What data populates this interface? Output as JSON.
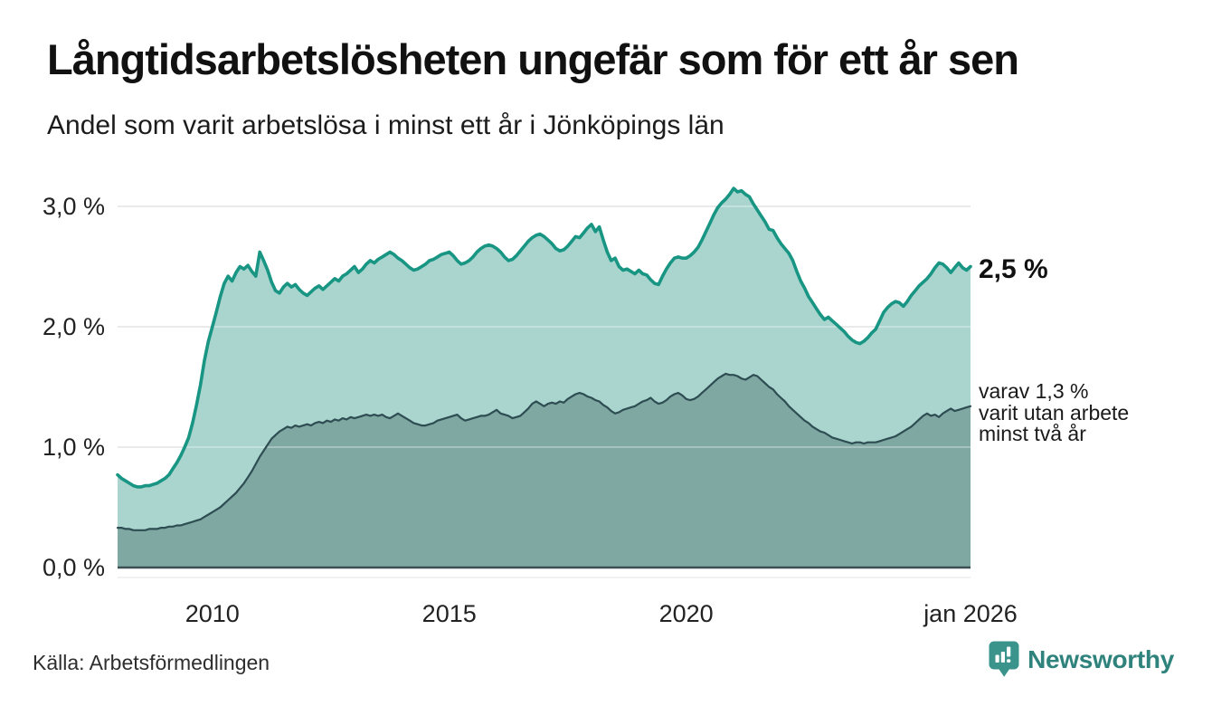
{
  "header": {
    "title": "Långtidsarbetslösheten ungefär som för ett år sen",
    "subtitle": "Andel som varit arbetslösa i minst ett år i Jönköpings län"
  },
  "annotations": {
    "latest_total": "2,5 %",
    "secondary_line1": "varav 1,3 %",
    "secondary_line2": "varit utan arbete",
    "secondary_line3": "minst två år"
  },
  "footer": {
    "source": "Källa: Arbetsförmedlingen",
    "brand": "Newsworthy"
  },
  "colors": {
    "line_total": "#189583",
    "area_total": "#A9D5CE",
    "line_two_year": "#2E4D53",
    "area_two_year": "#7FA8A2",
    "grid": "#D4D4D4",
    "axis_baseline": "#3C4F53",
    "sub_axis": "#E3E3E3",
    "tick_text": "#222222",
    "brand_icon": "#3A948C",
    "brand_text": "#2F837C"
  },
  "chart_data": {
    "type": "area",
    "title": "Långtidsarbetslösheten ungefär som för ett år sen",
    "subtitle": "Andel som varit arbetslösa i minst ett år i Jönköpings län",
    "x_start_year": 2008,
    "points_per_year": 12,
    "x_end_year": 2026,
    "ylim": [
      0,
      3.3
    ],
    "grid": true,
    "y_ticks": [
      {
        "value": 0,
        "label": "0,0 %"
      },
      {
        "value": 1,
        "label": "1,0 %"
      },
      {
        "value": 2,
        "label": "2,0 %"
      },
      {
        "value": 3,
        "label": "3,0 %"
      }
    ],
    "x_ticks": [
      {
        "year": 2010,
        "label": "2010"
      },
      {
        "year": 2015,
        "label": "2015"
      },
      {
        "year": 2020,
        "label": "2020"
      },
      {
        "year": 2026,
        "label": "jan 2026"
      }
    ],
    "latest_values": {
      "total": 2.5,
      "two_year": 1.3
    },
    "series": [
      {
        "name": "Andel arbetslösa minst ett år",
        "values": [
          0.77,
          0.74,
          0.72,
          0.7,
          0.68,
          0.67,
          0.67,
          0.68,
          0.68,
          0.69,
          0.7,
          0.72,
          0.74,
          0.77,
          0.82,
          0.87,
          0.93,
          1.0,
          1.08,
          1.2,
          1.35,
          1.52,
          1.72,
          1.88,
          2.0,
          2.12,
          2.25,
          2.36,
          2.42,
          2.38,
          2.45,
          2.5,
          2.48,
          2.51,
          2.46,
          2.42,
          2.62,
          2.55,
          2.47,
          2.37,
          2.3,
          2.28,
          2.33,
          2.36,
          2.33,
          2.35,
          2.31,
          2.28,
          2.26,
          2.29,
          2.32,
          2.34,
          2.31,
          2.34,
          2.37,
          2.4,
          2.38,
          2.42,
          2.44,
          2.47,
          2.5,
          2.45,
          2.48,
          2.52,
          2.55,
          2.53,
          2.56,
          2.58,
          2.6,
          2.62,
          2.6,
          2.57,
          2.55,
          2.52,
          2.49,
          2.47,
          2.48,
          2.5,
          2.52,
          2.55,
          2.56,
          2.58,
          2.6,
          2.61,
          2.62,
          2.59,
          2.55,
          2.52,
          2.53,
          2.55,
          2.58,
          2.62,
          2.65,
          2.67,
          2.68,
          2.67,
          2.65,
          2.62,
          2.58,
          2.55,
          2.56,
          2.59,
          2.63,
          2.67,
          2.71,
          2.74,
          2.76,
          2.77,
          2.75,
          2.72,
          2.69,
          2.65,
          2.63,
          2.64,
          2.67,
          2.71,
          2.75,
          2.74,
          2.78,
          2.82,
          2.85,
          2.79,
          2.83,
          2.72,
          2.62,
          2.55,
          2.57,
          2.5,
          2.47,
          2.48,
          2.46,
          2.44,
          2.47,
          2.44,
          2.43,
          2.39,
          2.36,
          2.35,
          2.42,
          2.48,
          2.53,
          2.57,
          2.58,
          2.57,
          2.57,
          2.59,
          2.62,
          2.66,
          2.72,
          2.79,
          2.86,
          2.93,
          2.99,
          3.03,
          3.06,
          3.1,
          3.15,
          3.12,
          3.13,
          3.1,
          3.08,
          3.02,
          2.97,
          2.92,
          2.87,
          2.81,
          2.8,
          2.74,
          2.69,
          2.65,
          2.61,
          2.55,
          2.46,
          2.38,
          2.32,
          2.25,
          2.2,
          2.15,
          2.1,
          2.06,
          2.08,
          2.05,
          2.02,
          1.99,
          1.96,
          1.92,
          1.89,
          1.87,
          1.86,
          1.88,
          1.91,
          1.95,
          1.98,
          2.05,
          2.12,
          2.16,
          2.19,
          2.21,
          2.2,
          2.17,
          2.21,
          2.26,
          2.3,
          2.34,
          2.37,
          2.4,
          2.44,
          2.49,
          2.53,
          2.52,
          2.49,
          2.45,
          2.49,
          2.53,
          2.49,
          2.47,
          2.5
        ]
      },
      {
        "name": "Varav utan arbete minst två år",
        "values": [
          0.33,
          0.33,
          0.32,
          0.32,
          0.31,
          0.31,
          0.31,
          0.31,
          0.32,
          0.32,
          0.32,
          0.33,
          0.33,
          0.34,
          0.34,
          0.35,
          0.35,
          0.36,
          0.37,
          0.38,
          0.39,
          0.4,
          0.42,
          0.44,
          0.46,
          0.48,
          0.5,
          0.53,
          0.56,
          0.59,
          0.62,
          0.66,
          0.7,
          0.75,
          0.8,
          0.86,
          0.92,
          0.97,
          1.02,
          1.07,
          1.1,
          1.13,
          1.15,
          1.17,
          1.16,
          1.18,
          1.17,
          1.18,
          1.19,
          1.18,
          1.2,
          1.21,
          1.2,
          1.22,
          1.21,
          1.23,
          1.22,
          1.24,
          1.23,
          1.25,
          1.24,
          1.25,
          1.26,
          1.27,
          1.26,
          1.27,
          1.26,
          1.27,
          1.25,
          1.24,
          1.26,
          1.28,
          1.26,
          1.24,
          1.22,
          1.2,
          1.19,
          1.18,
          1.18,
          1.19,
          1.2,
          1.22,
          1.23,
          1.24,
          1.25,
          1.26,
          1.27,
          1.24,
          1.22,
          1.23,
          1.24,
          1.25,
          1.26,
          1.26,
          1.27,
          1.29,
          1.31,
          1.28,
          1.27,
          1.26,
          1.24,
          1.25,
          1.26,
          1.29,
          1.32,
          1.36,
          1.38,
          1.36,
          1.34,
          1.36,
          1.37,
          1.36,
          1.38,
          1.37,
          1.4,
          1.42,
          1.44,
          1.45,
          1.44,
          1.42,
          1.41,
          1.39,
          1.38,
          1.35,
          1.33,
          1.3,
          1.28,
          1.29,
          1.31,
          1.32,
          1.33,
          1.34,
          1.36,
          1.38,
          1.39,
          1.41,
          1.38,
          1.36,
          1.37,
          1.39,
          1.42,
          1.44,
          1.45,
          1.43,
          1.4,
          1.39,
          1.4,
          1.42,
          1.45,
          1.48,
          1.51,
          1.54,
          1.57,
          1.59,
          1.61,
          1.6,
          1.6,
          1.59,
          1.57,
          1.56,
          1.58,
          1.6,
          1.59,
          1.56,
          1.53,
          1.5,
          1.48,
          1.44,
          1.41,
          1.38,
          1.34,
          1.31,
          1.28,
          1.25,
          1.22,
          1.2,
          1.17,
          1.15,
          1.13,
          1.12,
          1.1,
          1.08,
          1.07,
          1.06,
          1.05,
          1.04,
          1.03,
          1.04,
          1.04,
          1.03,
          1.04,
          1.04,
          1.04,
          1.05,
          1.06,
          1.07,
          1.08,
          1.09,
          1.11,
          1.13,
          1.15,
          1.17,
          1.2,
          1.23,
          1.26,
          1.28,
          1.26,
          1.27,
          1.25,
          1.28,
          1.3,
          1.32,
          1.3,
          1.31,
          1.32,
          1.33,
          1.34
        ]
      }
    ]
  }
}
